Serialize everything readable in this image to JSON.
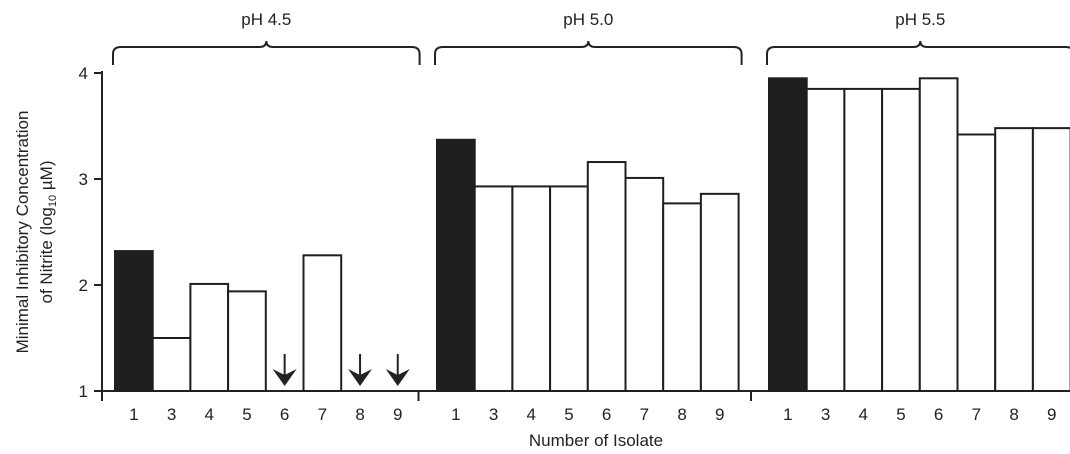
{
  "chart_data": {
    "type": "bar",
    "xlabel": "Number of Isolate",
    "ylabel_line1": "Minimal Inhibitory Concentration",
    "ylabel_line2_prefix": "of Nitrite (log",
    "ylabel_line2_sub": "10",
    "ylabel_line2_suffix": " µM)",
    "ylim": [
      1,
      4
    ],
    "yticks": [
      1,
      2,
      3,
      4
    ],
    "bar_colors": {
      "highlight": "#1f1f1f",
      "normal": "#ffffff",
      "stroke": "#1f1f1f"
    },
    "groups": [
      {
        "name": "pH 4.5",
        "categories": [
          "1",
          "3",
          "4",
          "5",
          "6",
          "7",
          "8",
          "9"
        ],
        "values": [
          2.32,
          1.5,
          2.01,
          1.94,
          null,
          2.28,
          null,
          null
        ],
        "below_detection": [
          false,
          false,
          false,
          false,
          true,
          false,
          true,
          true
        ],
        "highlight": [
          true,
          false,
          false,
          false,
          false,
          false,
          false,
          false
        ]
      },
      {
        "name": "pH 5.0",
        "categories": [
          "1",
          "3",
          "4",
          "5",
          "6",
          "7",
          "8",
          "9"
        ],
        "values": [
          3.37,
          2.93,
          2.93,
          2.93,
          3.16,
          3.01,
          2.77,
          2.86
        ],
        "below_detection": [
          false,
          false,
          false,
          false,
          false,
          false,
          false,
          false
        ],
        "highlight": [
          true,
          false,
          false,
          false,
          false,
          false,
          false,
          false
        ]
      },
      {
        "name": "pH 5.5",
        "categories": [
          "1",
          "3",
          "4",
          "5",
          "6",
          "7",
          "8",
          "9"
        ],
        "values": [
          3.95,
          3.85,
          3.85,
          3.85,
          3.95,
          3.42,
          3.48,
          3.48
        ],
        "below_detection": [
          false,
          false,
          false,
          false,
          false,
          false,
          false,
          false
        ],
        "highlight": [
          true,
          false,
          false,
          false,
          false,
          false,
          false,
          false
        ]
      }
    ]
  }
}
